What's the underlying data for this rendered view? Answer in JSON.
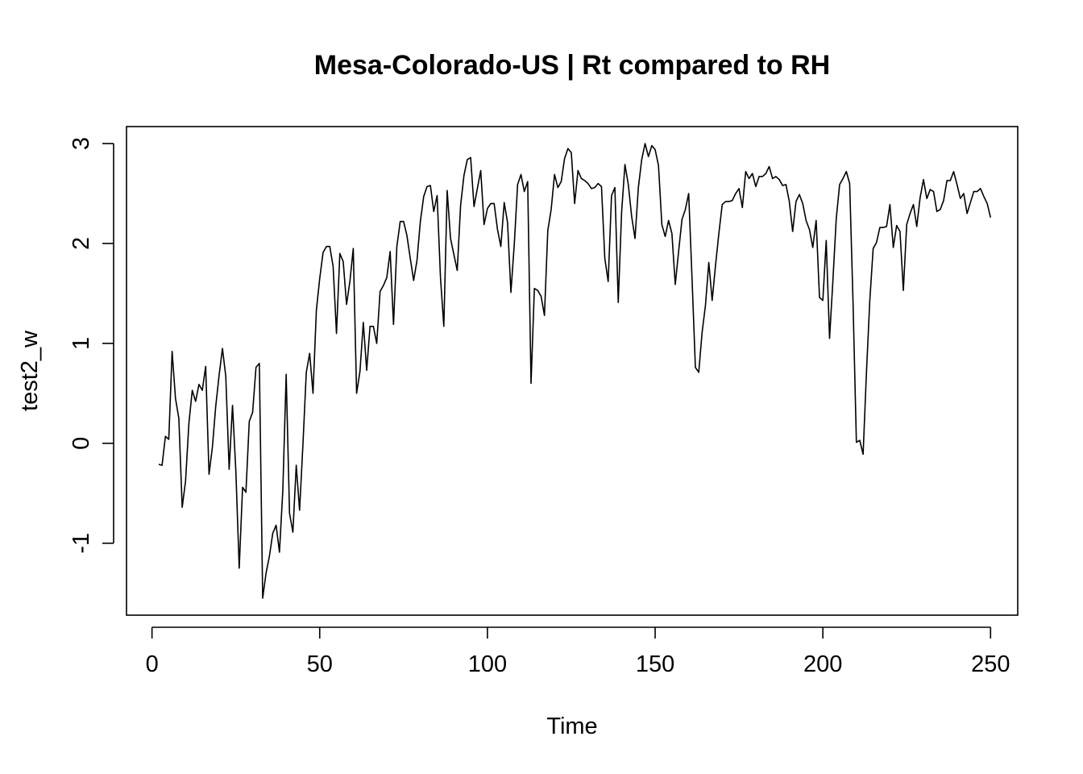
{
  "chart_data": {
    "type": "line",
    "title": "Mesa-Colorado-US | Rt compared to RH",
    "xlabel": "Time",
    "ylabel": "test2_w",
    "xlim": [
      -7.6,
      258.1
    ],
    "ylim": [
      -1.72,
      3.17
    ],
    "xticks": [
      0,
      50,
      100,
      150,
      200,
      250
    ],
    "xtick_labels": [
      "0",
      "50",
      "100",
      "150",
      "200",
      "250"
    ],
    "yticks": [
      -1,
      0,
      1,
      2,
      3
    ],
    "ytick_labels": [
      "-1",
      "0",
      "1",
      "2",
      "3"
    ],
    "grid": false,
    "legend": "none",
    "line_color": "#000000",
    "x_start": 2,
    "x_step": 1,
    "values": [
      -0.21,
      -0.22,
      0.07,
      0.04,
      0.92,
      0.45,
      0.25,
      -0.64,
      -0.38,
      0.2,
      0.53,
      0.42,
      0.59,
      0.53,
      0.77,
      -0.31,
      -0.04,
      0.37,
      0.68,
      0.95,
      0.67,
      -0.26,
      0.38,
      -0.28,
      -1.25,
      -0.44,
      -0.49,
      0.22,
      0.31,
      0.76,
      0.8,
      -1.55,
      -1.3,
      -1.13,
      -0.9,
      -0.82,
      -1.09,
      -0.47,
      0.69,
      -0.7,
      -0.89,
      -0.22,
      -0.67,
      -0.01,
      0.71,
      0.9,
      0.5,
      1.33,
      1.65,
      1.91,
      1.97,
      1.97,
      1.77,
      1.1,
      1.9,
      1.82,
      1.39,
      1.62,
      1.95,
      0.5,
      0.72,
      1.21,
      0.73,
      1.17,
      1.17,
      1.0,
      1.52,
      1.58,
      1.66,
      1.92,
      1.19,
      1.97,
      2.22,
      2.22,
      2.08,
      1.85,
      1.63,
      1.83,
      2.22,
      2.47,
      2.57,
      2.58,
      2.32,
      2.48,
      1.66,
      1.17,
      2.53,
      2.05,
      1.89,
      1.73,
      2.38,
      2.68,
      2.84,
      2.86,
      2.37,
      2.55,
      2.73,
      2.19,
      2.35,
      2.4,
      2.4,
      2.14,
      1.97,
      2.41,
      2.21,
      1.51,
      1.99,
      2.59,
      2.69,
      2.52,
      2.62,
      0.6,
      1.55,
      1.53,
      1.47,
      1.28,
      2.13,
      2.34,
      2.69,
      2.56,
      2.62,
      2.85,
      2.95,
      2.91,
      2.4,
      2.73,
      2.65,
      2.63,
      2.6,
      2.55,
      2.56,
      2.6,
      2.57,
      1.85,
      1.62,
      2.48,
      2.56,
      1.41,
      2.31,
      2.79,
      2.59,
      2.27,
      2.05,
      2.56,
      2.84,
      3.0,
      2.87,
      2.98,
      2.94,
      2.78,
      2.19,
      2.07,
      2.23,
      2.1,
      1.59,
      1.92,
      2.24,
      2.34,
      2.5,
      1.65,
      0.76,
      0.71,
      1.11,
      1.38,
      1.81,
      1.43,
      1.78,
      2.1,
      2.39,
      2.42,
      2.42,
      2.43,
      2.5,
      2.55,
      2.36,
      2.72,
      2.65,
      2.7,
      2.57,
      2.67,
      2.67,
      2.7,
      2.77,
      2.65,
      2.67,
      2.64,
      2.58,
      2.59,
      2.42,
      2.12,
      2.42,
      2.49,
      2.4,
      2.23,
      2.14,
      1.96,
      2.23,
      1.46,
      1.43,
      2.03,
      1.05,
      1.63,
      2.25,
      2.59,
      2.65,
      2.72,
      2.6,
      1.41,
      0.01,
      0.03,
      -0.11,
      0.71,
      1.43,
      1.95,
      2.01,
      2.16,
      2.16,
      2.17,
      2.39,
      1.96,
      2.18,
      2.12,
      1.53,
      2.19,
      2.3,
      2.39,
      2.17,
      2.46,
      2.64,
      2.45,
      2.54,
      2.52,
      2.32,
      2.34,
      2.43,
      2.63,
      2.63,
      2.72,
      2.59,
      2.45,
      2.5,
      2.3,
      2.41,
      2.52,
      2.52,
      2.55,
      2.47,
      2.4,
      2.26
    ]
  }
}
